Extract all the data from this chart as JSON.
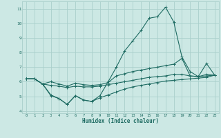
{
  "xlabel": "Humidex (Indice chaleur)",
  "x": [
    0,
    1,
    2,
    3,
    4,
    5,
    6,
    7,
    8,
    9,
    10,
    11,
    12,
    13,
    14,
    15,
    16,
    17,
    18,
    19,
    20,
    21,
    22,
    23
  ],
  "line1": [
    6.2,
    6.2,
    5.85,
    5.05,
    4.85,
    4.45,
    5.05,
    4.75,
    4.65,
    5.05,
    6.0,
    7.0,
    8.1,
    8.8,
    9.5,
    10.35,
    10.45,
    11.1,
    10.1,
    7.7,
    6.7,
    6.35,
    7.25,
    6.45
  ],
  "line2": [
    6.2,
    6.2,
    5.85,
    6.0,
    5.85,
    5.7,
    5.9,
    5.8,
    5.75,
    5.8,
    5.95,
    6.4,
    6.55,
    6.7,
    6.8,
    6.9,
    7.0,
    7.1,
    7.2,
    7.6,
    6.4,
    6.35,
    6.5,
    6.45
  ],
  "line3": [
    6.2,
    6.2,
    5.85,
    5.75,
    5.7,
    5.6,
    5.7,
    5.65,
    5.65,
    5.7,
    5.8,
    5.9,
    6.0,
    6.1,
    6.2,
    6.3,
    6.35,
    6.4,
    6.5,
    6.5,
    6.4,
    6.35,
    6.4,
    6.45
  ],
  "line4": [
    6.2,
    6.2,
    5.85,
    5.1,
    4.85,
    4.45,
    5.05,
    4.75,
    4.65,
    4.9,
    5.1,
    5.3,
    5.5,
    5.65,
    5.75,
    5.85,
    5.95,
    6.05,
    6.1,
    6.15,
    6.2,
    6.25,
    6.3,
    6.45
  ],
  "line_color": "#1e6b62",
  "bg_color": "#cce8e4",
  "grid_color": "#aacfcb",
  "tick_color": "#1e6b62",
  "xlim": [
    -0.5,
    23.5
  ],
  "ylim": [
    3.85,
    11.5
  ],
  "yticks": [
    4,
    5,
    6,
    7,
    8,
    9,
    10,
    11
  ],
  "xticks": [
    0,
    1,
    2,
    3,
    4,
    5,
    6,
    7,
    8,
    9,
    10,
    11,
    12,
    13,
    14,
    15,
    16,
    17,
    18,
    19,
    20,
    21,
    22,
    23
  ]
}
